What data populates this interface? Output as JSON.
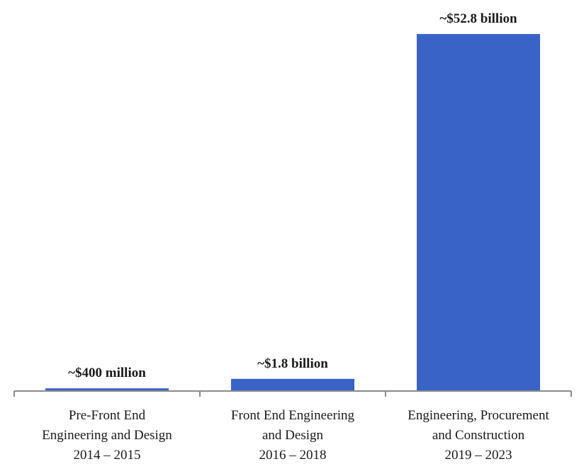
{
  "chart_data": {
    "type": "bar",
    "title": "",
    "xlabel": "",
    "ylabel": "",
    "categories": [
      [
        "Pre-Front End",
        "Engineering and Design",
        "2014 – 2015"
      ],
      [
        "Front End Engineering",
        "and Design",
        "2016 – 2018"
      ],
      [
        "Engineering, Procurement",
        "and Construction",
        "2019 – 2023"
      ]
    ],
    "values": [
      0.4,
      1.8,
      52.8
    ],
    "value_unit": "billion USD",
    "data_labels": [
      "~$400 million",
      "~$1.8 billion",
      "~$52.8 billion"
    ],
    "ylim": [
      0,
      52.8
    ],
    "grid": false,
    "legend": "none",
    "colors": {
      "bar": "#3a63c8",
      "axis": "#8a8a8a",
      "text": "#1a1a1a"
    }
  }
}
